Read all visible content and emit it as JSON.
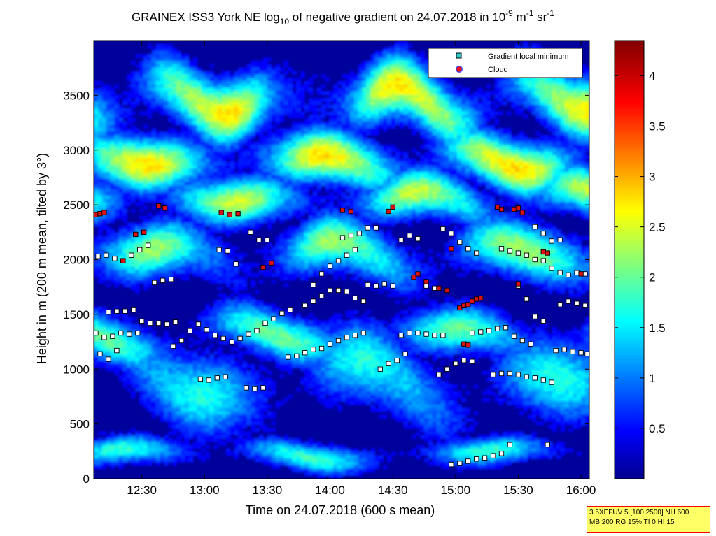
{
  "chart_data": {
    "type": "heatmap",
    "title": {
      "p1": "GRAINEX ISS3 York NE log",
      "sub1": "10",
      "p2": " of negative gradient on 24.07.2018 in 10",
      "sup1": "-9",
      "p3": " m",
      "sup2": "-1",
      "p4": " sr",
      "sup3": "-1"
    },
    "xlabel": "Time on 24.07.2018 (600 s mean)",
    "ylabel": "Height in m (200 m mean, tilted by 3°)",
    "x_ticks": [
      "12:30",
      "13:00",
      "13:30",
      "14:00",
      "14:30",
      "15:00",
      "15:30",
      "16:00"
    ],
    "xlim": [
      "12:07",
      "16:04"
    ],
    "y_ticks": [
      0,
      500,
      1000,
      1500,
      2000,
      2500,
      3000,
      3500
    ],
    "ylim": [
      0,
      4000
    ],
    "colorbar": {
      "ticks": [
        0.5,
        1,
        1.5,
        2,
        2.5,
        3,
        3.5,
        4
      ],
      "range": [
        0,
        4.35
      ],
      "colormap": "jet"
    },
    "legend": {
      "position": "top-right",
      "entries": [
        {
          "label": "Gradient local minimum",
          "color": "#33cccc"
        },
        {
          "label": "Cloud",
          "color": "#ee1111"
        }
      ]
    },
    "layers_description": {
      "bands": [
        {
          "center_m": 230,
          "width_m": 130,
          "value": 1.7
        },
        {
          "center_m": 900,
          "width_m": 400,
          "value": 1.6
        },
        {
          "center_m": 1300,
          "width_m": 220,
          "value": 1.9
        },
        {
          "center_m": 2050,
          "width_m": 260,
          "value": 2.1
        },
        {
          "center_m": 2550,
          "width_m": 220,
          "value": 2.3
        },
        {
          "center_m": 2900,
          "width_m": 250,
          "value": 2.6
        },
        {
          "center_m": 3450,
          "width_m": 300,
          "value": 2.6
        }
      ]
    },
    "series": [
      {
        "name": "Gradient local minimum",
        "points": [
          [
            "12:08",
            1330
          ],
          [
            "12:12",
            1290
          ],
          [
            "12:16",
            1300
          ],
          [
            "12:20",
            1330
          ],
          [
            "12:24",
            1320
          ],
          [
            "12:28",
            1330
          ],
          [
            "12:09",
            2030
          ],
          [
            "12:13",
            2040
          ],
          [
            "12:17",
            2010
          ],
          [
            "12:21",
            1990
          ],
          [
            "12:25",
            2040
          ],
          [
            "12:29",
            2090
          ],
          [
            "12:33",
            2130
          ],
          [
            "12:14",
            1520
          ],
          [
            "12:18",
            1530
          ],
          [
            "12:22",
            1530
          ],
          [
            "12:26",
            1540
          ],
          [
            "12:30",
            1440
          ],
          [
            "12:34",
            1420
          ],
          [
            "12:38",
            1420
          ],
          [
            "12:42",
            1410
          ],
          [
            "12:46",
            1430
          ],
          [
            "12:36",
            1790
          ],
          [
            "12:40",
            1810
          ],
          [
            "12:44",
            1820
          ],
          [
            "12:10",
            1140
          ],
          [
            "12:14",
            1090
          ],
          [
            "12:18",
            1170
          ],
          [
            "12:45",
            1210
          ],
          [
            "12:49",
            1260
          ],
          [
            "12:53",
            1350
          ],
          [
            "12:57",
            1410
          ],
          [
            "13:01",
            1360
          ],
          [
            "13:05",
            1310
          ],
          [
            "13:09",
            1280
          ],
          [
            "13:13",
            1250
          ],
          [
            "13:17",
            1280
          ],
          [
            "13:21",
            1320
          ],
          [
            "13:25",
            1350
          ],
          [
            "13:29",
            1420
          ],
          [
            "13:33",
            1460
          ],
          [
            "13:37",
            1510
          ],
          [
            "13:41",
            1540
          ],
          [
            "12:58",
            910
          ],
          [
            "13:02",
            900
          ],
          [
            "13:06",
            920
          ],
          [
            "13:10",
            930
          ],
          [
            "13:07",
            2090
          ],
          [
            "13:11",
            2080
          ],
          [
            "13:15",
            1960
          ],
          [
            "13:22",
            2250
          ],
          [
            "13:26",
            2180
          ],
          [
            "13:30",
            2180
          ],
          [
            "13:20",
            830
          ],
          [
            "13:24",
            820
          ],
          [
            "13:28",
            830
          ],
          [
            "13:40",
            1110
          ],
          [
            "13:44",
            1120
          ],
          [
            "13:48",
            1150
          ],
          [
            "13:52",
            1180
          ],
          [
            "13:56",
            1190
          ],
          [
            "14:00",
            1230
          ],
          [
            "14:04",
            1260
          ],
          [
            "14:08",
            1290
          ],
          [
            "14:12",
            1310
          ],
          [
            "14:16",
            1330
          ],
          [
            "13:48",
            1580
          ],
          [
            "13:52",
            1620
          ],
          [
            "13:56",
            1670
          ],
          [
            "14:00",
            1720
          ],
          [
            "14:04",
            1720
          ],
          [
            "14:08",
            1710
          ],
          [
            "14:12",
            1650
          ],
          [
            "14:16",
            1620
          ],
          [
            "13:52",
            1770
          ],
          [
            "13:56",
            1870
          ],
          [
            "14:00",
            1940
          ],
          [
            "14:04",
            1990
          ],
          [
            "14:08",
            2040
          ],
          [
            "14:12",
            2090
          ],
          [
            "14:06",
            2200
          ],
          [
            "14:10",
            2220
          ],
          [
            "14:14",
            2240
          ],
          [
            "14:18",
            2290
          ],
          [
            "14:22",
            2290
          ],
          [
            "14:18",
            1770
          ],
          [
            "14:22",
            1760
          ],
          [
            "14:26",
            1780
          ],
          [
            "14:30",
            1760
          ],
          [
            "14:24",
            1000
          ],
          [
            "14:28",
            1050
          ],
          [
            "14:32",
            1080
          ],
          [
            "14:36",
            1140
          ],
          [
            "14:34",
            1310
          ],
          [
            "14:38",
            1330
          ],
          [
            "14:42",
            1330
          ],
          [
            "14:46",
            1320
          ],
          [
            "14:50",
            1310
          ],
          [
            "14:54",
            1310
          ],
          [
            "14:34",
            2180
          ],
          [
            "14:38",
            2220
          ],
          [
            "14:42",
            2190
          ],
          [
            "14:46",
            1760
          ],
          [
            "14:50",
            1740
          ],
          [
            "14:52",
            950
          ],
          [
            "14:56",
            1000
          ],
          [
            "15:00",
            1050
          ],
          [
            "15:04",
            1080
          ],
          [
            "15:08",
            1070
          ],
          [
            "14:54",
            2280
          ],
          [
            "14:58",
            2240
          ],
          [
            "15:02",
            2160
          ],
          [
            "15:06",
            2100
          ],
          [
            "15:10",
            2060
          ],
          [
            "14:58",
            130
          ],
          [
            "15:02",
            140
          ],
          [
            "15:06",
            160
          ],
          [
            "15:10",
            180
          ],
          [
            "15:14",
            190
          ],
          [
            "15:18",
            210
          ],
          [
            "15:22",
            230
          ],
          [
            "15:26",
            310
          ],
          [
            "15:44",
            310
          ],
          [
            "15:08",
            1330
          ],
          [
            "15:12",
            1340
          ],
          [
            "15:16",
            1350
          ],
          [
            "15:20",
            1370
          ],
          [
            "15:24",
            1380
          ],
          [
            "15:28",
            1300
          ],
          [
            "15:32",
            1260
          ],
          [
            "15:36",
            1230
          ],
          [
            "15:18",
            950
          ],
          [
            "15:22",
            960
          ],
          [
            "15:26",
            960
          ],
          [
            "15:30",
            950
          ],
          [
            "15:34",
            930
          ],
          [
            "15:38",
            920
          ],
          [
            "15:42",
            900
          ],
          [
            "15:46",
            880
          ],
          [
            "15:22",
            2100
          ],
          [
            "15:26",
            2080
          ],
          [
            "15:30",
            2060
          ],
          [
            "15:34",
            2040
          ],
          [
            "15:38",
            2000
          ],
          [
            "15:42",
            1990
          ],
          [
            "15:30",
            1760
          ],
          [
            "15:34",
            1640
          ],
          [
            "15:38",
            1480
          ],
          [
            "15:42",
            1440
          ],
          [
            "15:38",
            2300
          ],
          [
            "15:42",
            2240
          ],
          [
            "15:46",
            2170
          ],
          [
            "15:50",
            2180
          ],
          [
            "15:46",
            1920
          ],
          [
            "15:50",
            1880
          ],
          [
            "15:54",
            1860
          ],
          [
            "15:58",
            1880
          ],
          [
            "16:02",
            1870
          ],
          [
            "15:48",
            1170
          ],
          [
            "15:52",
            1180
          ],
          [
            "15:56",
            1160
          ],
          [
            "16:00",
            1150
          ],
          [
            "16:03",
            1140
          ],
          [
            "15:50",
            1590
          ],
          [
            "15:54",
            1620
          ],
          [
            "15:58",
            1600
          ],
          [
            "16:02",
            1580
          ]
        ]
      },
      {
        "name": "Cloud",
        "points": [
          [
            "12:08",
            2410
          ],
          [
            "12:10",
            2420
          ],
          [
            "12:12",
            2430
          ],
          [
            "12:21",
            1990
          ],
          [
            "12:27",
            2230
          ],
          [
            "12:31",
            2250
          ],
          [
            "12:38",
            2490
          ],
          [
            "12:41",
            2470
          ],
          [
            "13:08",
            2430
          ],
          [
            "13:12",
            2410
          ],
          [
            "13:16",
            2420
          ],
          [
            "13:28",
            1930
          ],
          [
            "13:32",
            1970
          ],
          [
            "14:06",
            2450
          ],
          [
            "14:10",
            2440
          ],
          [
            "14:28",
            2440
          ],
          [
            "14:30",
            2480
          ],
          [
            "14:40",
            1840
          ],
          [
            "14:42",
            1870
          ],
          [
            "14:46",
            1800
          ],
          [
            "14:52",
            1740
          ],
          [
            "14:56",
            1720
          ],
          [
            "14:58",
            2100
          ],
          [
            "15:02",
            1560
          ],
          [
            "15:04",
            1580
          ],
          [
            "15:06",
            1590
          ],
          [
            "15:08",
            1620
          ],
          [
            "15:10",
            1640
          ],
          [
            "15:12",
            1650
          ],
          [
            "15:04",
            1230
          ],
          [
            "15:06",
            1220
          ],
          [
            "15:20",
            2480
          ],
          [
            "15:22",
            2460
          ],
          [
            "15:28",
            2460
          ],
          [
            "15:30",
            2470
          ],
          [
            "15:32",
            2430
          ],
          [
            "15:30",
            1780
          ],
          [
            "15:42",
            2070
          ],
          [
            "15:44",
            2060
          ],
          [
            "16:00",
            1870
          ]
        ]
      }
    ]
  },
  "info_box": {
    "line1": "3.5XEFUV 5 [100 2500] NH 600",
    "line2": "MB 200 RG 15% TI 0 HI 15"
  }
}
